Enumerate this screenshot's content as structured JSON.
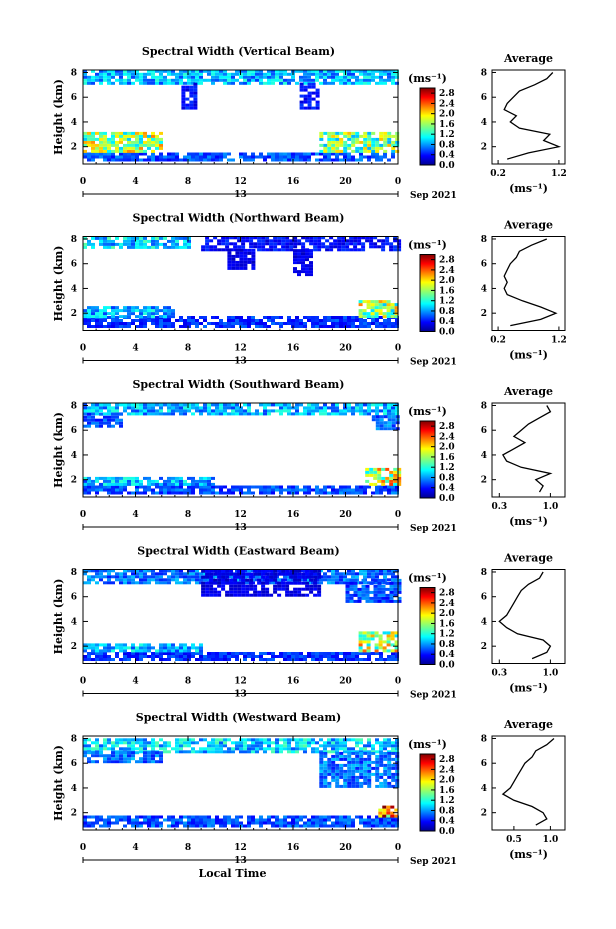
{
  "chart_data": [
    {
      "type": "heatmap",
      "title": "Spectral Width (Vertical Beam)",
      "ylabel": "Height (km)",
      "xlabel": "",
      "x_ticks": [
        "0",
        "4",
        "8",
        "12",
        "16",
        "20",
        "0"
      ],
      "x_range_hours": [
        0,
        24
      ],
      "date_label": "13",
      "month_label": "Sep 2021",
      "y_ticks": [
        "2",
        "4",
        "6",
        "8"
      ],
      "y_range_km": [
        0.6,
        8.2
      ],
      "colorbar_unit": "(ms⁻¹)",
      "colorbar_ticks": [
        "0.0",
        "0.4",
        "0.8",
        "1.2",
        "1.6",
        "2.0",
        "2.4",
        "2.8"
      ],
      "colorbar_range": [
        0,
        3.0
      ],
      "data_regions": [
        {
          "t": [
            0,
            24
          ],
          "h": [
            0.8,
            1.5
          ],
          "level": 0.6
        },
        {
          "t": [
            0,
            6
          ],
          "h": [
            1.5,
            3.0
          ],
          "level": 1.6
        },
        {
          "t": [
            18,
            24
          ],
          "h": [
            1.5,
            3.0
          ],
          "level": 1.5
        },
        {
          "t": [
            0,
            24
          ],
          "h": [
            7.0,
            8.0
          ],
          "level": 0.9
        },
        {
          "t": [
            7.5,
            8.5
          ],
          "h": [
            5.0,
            7.0
          ],
          "level": 0.4
        },
        {
          "t": [
            16.5,
            18
          ],
          "h": [
            5.0,
            7.0
          ],
          "level": 0.4
        }
      ],
      "average_profile": {
        "title": "Average",
        "xlabel": "(ms⁻¹)",
        "x_ticks": [
          "0.2",
          "1.2"
        ],
        "x_range": [
          0.1,
          1.3
        ],
        "y_ticks": [
          "2",
          "4",
          "6",
          "8"
        ],
        "height_km": [
          1.0,
          1.5,
          2.0,
          2.5,
          3.0,
          3.5,
          4.0,
          4.5,
          5.0,
          5.5,
          6.0,
          6.5,
          7.0,
          7.5,
          8.0
        ],
        "width_ms": [
          0.35,
          0.7,
          1.2,
          0.95,
          1.05,
          0.55,
          0.4,
          0.5,
          0.3,
          0.35,
          0.45,
          0.55,
          0.8,
          1.0,
          1.1
        ]
      }
    },
    {
      "type": "heatmap",
      "title": "Spectral Width (Northward Beam)",
      "ylabel": "Height (km)",
      "xlabel": "",
      "x_ticks": [
        "0",
        "4",
        "8",
        "12",
        "16",
        "20",
        "0"
      ],
      "x_range_hours": [
        0,
        24
      ],
      "date_label": "13",
      "month_label": "Sep 2021",
      "y_ticks": [
        "2",
        "4",
        "6",
        "8"
      ],
      "y_range_km": [
        0.6,
        8.2
      ],
      "colorbar_unit": "(ms⁻¹)",
      "colorbar_ticks": [
        "0.0",
        "0.4",
        "0.8",
        "1.2",
        "1.6",
        "2.0",
        "2.4",
        "2.8"
      ],
      "colorbar_range": [
        0,
        3.0
      ],
      "data_regions": [
        {
          "t": [
            0,
            24
          ],
          "h": [
            0.8,
            1.6
          ],
          "level": 0.5
        },
        {
          "t": [
            0,
            7
          ],
          "h": [
            1.6,
            2.4
          ],
          "level": 0.9
        },
        {
          "t": [
            21,
            24
          ],
          "h": [
            1.6,
            3.0
          ],
          "level": 1.6
        },
        {
          "t": [
            0,
            8
          ],
          "h": [
            7.2,
            8.0
          ],
          "level": 1.0
        },
        {
          "t": [
            9,
            24
          ],
          "h": [
            7.0,
            8.0
          ],
          "level": 0.4
        },
        {
          "t": [
            11,
            13
          ],
          "h": [
            5.5,
            7.0
          ],
          "level": 0.3
        },
        {
          "t": [
            16,
            17.5
          ],
          "h": [
            5.0,
            7.0
          ],
          "level": 0.3
        }
      ],
      "average_profile": {
        "title": "Average",
        "xlabel": "(ms⁻¹)",
        "x_ticks": [
          "0.2",
          "1.2"
        ],
        "x_range": [
          0.1,
          1.3
        ],
        "y_ticks": [
          "2",
          "4",
          "6",
          "8"
        ],
        "height_km": [
          1.0,
          1.5,
          2.0,
          2.5,
          3.0,
          3.5,
          4.0,
          4.5,
          5.0,
          5.5,
          6.0,
          6.5,
          7.0,
          7.5,
          8.0
        ],
        "width_ms": [
          0.4,
          0.9,
          1.15,
          0.9,
          0.6,
          0.35,
          0.3,
          0.35,
          0.3,
          0.35,
          0.4,
          0.5,
          0.55,
          0.75,
          1.0
        ]
      }
    },
    {
      "type": "heatmap",
      "title": "Spectral Width (Southward Beam)",
      "ylabel": "Height (km)",
      "xlabel": "",
      "x_ticks": [
        "0",
        "4",
        "8",
        "12",
        "16",
        "20",
        "0"
      ],
      "x_range_hours": [
        0,
        24
      ],
      "date_label": "13",
      "month_label": "Sep 2021",
      "y_ticks": [
        "2",
        "4",
        "6",
        "8"
      ],
      "y_range_km": [
        0.6,
        8.2
      ],
      "colorbar_unit": "(ms⁻¹)",
      "colorbar_ticks": [
        "0.0",
        "0.4",
        "0.8",
        "1.2",
        "1.6",
        "2.0",
        "2.4",
        "2.8"
      ],
      "colorbar_range": [
        0,
        3.0
      ],
      "data_regions": [
        {
          "t": [
            0,
            24
          ],
          "h": [
            0.8,
            1.5
          ],
          "level": 0.6
        },
        {
          "t": [
            0,
            10
          ],
          "h": [
            1.5,
            2.2
          ],
          "level": 0.9
        },
        {
          "t": [
            21.5,
            24
          ],
          "h": [
            1.5,
            2.8
          ],
          "level": 1.8
        },
        {
          "t": [
            0,
            24
          ],
          "h": [
            7.2,
            8.0
          ],
          "level": 0.9
        },
        {
          "t": [
            0,
            3
          ],
          "h": [
            6.2,
            7.2
          ],
          "level": 0.6
        },
        {
          "t": [
            22,
            24
          ],
          "h": [
            6.0,
            7.2
          ],
          "level": 0.7
        }
      ],
      "average_profile": {
        "title": "Average",
        "xlabel": "(ms⁻¹)",
        "x_ticks": [
          "0.3",
          "1.0"
        ],
        "x_range": [
          0.2,
          1.2
        ],
        "y_ticks": [
          "2",
          "4",
          "6",
          "8"
        ],
        "height_km": [
          1.0,
          1.5,
          2.0,
          2.5,
          3.0,
          3.5,
          4.0,
          4.5,
          5.0,
          5.5,
          6.0,
          6.5,
          7.0,
          7.5,
          8.0
        ],
        "width_ms": [
          0.85,
          0.9,
          0.8,
          1.0,
          0.6,
          0.4,
          0.35,
          0.5,
          0.65,
          0.5,
          0.6,
          0.7,
          0.85,
          1.0,
          0.95
        ]
      }
    },
    {
      "type": "heatmap",
      "title": "Spectral Width (Eastward Beam)",
      "ylabel": "Height (km)",
      "xlabel": "",
      "x_ticks": [
        "0",
        "4",
        "8",
        "12",
        "16",
        "20",
        "0"
      ],
      "x_range_hours": [
        0,
        24
      ],
      "date_label": "13",
      "month_label": "Sep 2021",
      "y_ticks": [
        "2",
        "4",
        "6",
        "8"
      ],
      "y_range_km": [
        0.6,
        8.2
      ],
      "colorbar_unit": "(ms⁻¹)",
      "colorbar_ticks": [
        "0.0",
        "0.4",
        "0.8",
        "1.2",
        "1.6",
        "2.0",
        "2.4",
        "2.8"
      ],
      "colorbar_range": [
        0,
        3.0
      ],
      "data_regions": [
        {
          "t": [
            0,
            24
          ],
          "h": [
            0.8,
            1.5
          ],
          "level": 0.5
        },
        {
          "t": [
            0,
            9
          ],
          "h": [
            1.5,
            2.2
          ],
          "level": 0.9
        },
        {
          "t": [
            21,
            24
          ],
          "h": [
            1.5,
            3.0
          ],
          "level": 1.7
        },
        {
          "t": [
            0,
            24
          ],
          "h": [
            7.0,
            8.0
          ],
          "level": 0.7
        },
        {
          "t": [
            9,
            18
          ],
          "h": [
            6.0,
            8.0
          ],
          "level": 0.3
        },
        {
          "t": [
            20,
            24
          ],
          "h": [
            5.5,
            7.2
          ],
          "level": 0.6
        }
      ],
      "average_profile": {
        "title": "Average",
        "xlabel": "(ms⁻¹)",
        "x_ticks": [
          "0.3",
          "1.0"
        ],
        "x_range": [
          0.2,
          1.2
        ],
        "y_ticks": [
          "2",
          "4",
          "6",
          "8"
        ],
        "height_km": [
          1.0,
          1.5,
          2.0,
          2.5,
          3.0,
          3.5,
          4.0,
          4.5,
          5.0,
          5.5,
          6.0,
          6.5,
          7.0,
          7.5,
          8.0
        ],
        "width_ms": [
          0.75,
          0.95,
          1.0,
          0.9,
          0.55,
          0.4,
          0.3,
          0.4,
          0.45,
          0.5,
          0.55,
          0.6,
          0.7,
          0.85,
          0.9
        ]
      }
    },
    {
      "type": "heatmap",
      "title": "Spectral Width (Westward Beam)",
      "ylabel": "Height (km)",
      "xlabel": "Local Time",
      "x_ticks": [
        "0",
        "4",
        "8",
        "12",
        "16",
        "20",
        "0"
      ],
      "x_range_hours": [
        0,
        24
      ],
      "date_label": "13",
      "month_label": "Sep 2021",
      "y_ticks": [
        "2",
        "4",
        "6",
        "8"
      ],
      "y_range_km": [
        0.6,
        8.2
      ],
      "colorbar_unit": "(ms⁻¹)",
      "colorbar_ticks": [
        "0.0",
        "0.4",
        "0.8",
        "1.2",
        "1.6",
        "2.0",
        "2.4",
        "2.8"
      ],
      "colorbar_range": [
        0,
        3.0
      ],
      "data_regions": [
        {
          "t": [
            0,
            24
          ],
          "h": [
            0.8,
            1.6
          ],
          "level": 0.6
        },
        {
          "t": [
            0,
            24
          ],
          "h": [
            6.8,
            8.0
          ],
          "level": 1.0
        },
        {
          "t": [
            0,
            6
          ],
          "h": [
            6.0,
            6.8
          ],
          "level": 0.7
        },
        {
          "t": [
            18,
            24
          ],
          "h": [
            4.0,
            6.8
          ],
          "level": 0.7
        },
        {
          "t": [
            22.5,
            24
          ],
          "h": [
            1.6,
            2.4
          ],
          "level": 2.4
        }
      ],
      "average_profile": {
        "title": "Average",
        "xlabel": "(ms⁻¹)",
        "x_ticks": [
          "0.5",
          "1.0"
        ],
        "x_range": [
          0.2,
          1.2
        ],
        "y_ticks": [
          "2",
          "4",
          "6",
          "8"
        ],
        "height_km": [
          1.0,
          1.5,
          2.0,
          2.5,
          3.0,
          3.5,
          4.0,
          4.5,
          5.0,
          5.5,
          6.0,
          6.5,
          7.0,
          7.5,
          8.0
        ],
        "width_ms": [
          0.8,
          0.95,
          0.9,
          0.75,
          0.5,
          0.35,
          0.45,
          0.5,
          0.55,
          0.6,
          0.65,
          0.75,
          0.8,
          0.95,
          1.05
        ]
      }
    }
  ]
}
